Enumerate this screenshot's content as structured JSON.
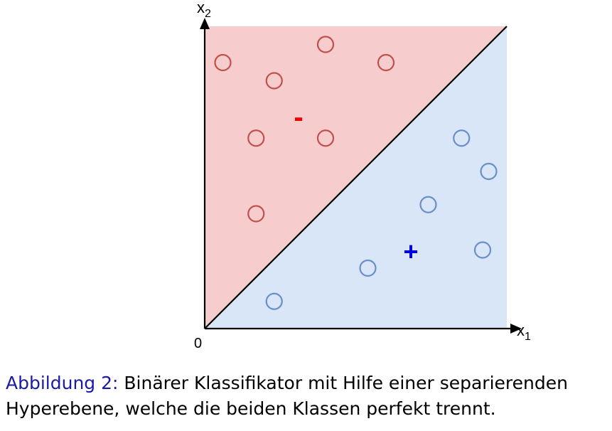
{
  "axes": {
    "x_label": "x",
    "x_subscript": "1",
    "y_label": "x",
    "y_subscript": "2",
    "origin_label": "0"
  },
  "regions": {
    "negative": {
      "sign": "-",
      "fill_color": "#f6cccc",
      "sign_color": "#ee0000"
    },
    "positive": {
      "sign": "+",
      "fill_color": "#d8e6f8",
      "sign_color": "#0000dd"
    }
  },
  "points": {
    "negative_color": "#c0504d",
    "positive_color": "#6a8fc7",
    "negative": [
      {
        "x": 0.06,
        "y": 0.88
      },
      {
        "x": 0.4,
        "y": 0.94
      },
      {
        "x": 0.6,
        "y": 0.88
      },
      {
        "x": 0.23,
        "y": 0.82
      },
      {
        "x": 0.17,
        "y": 0.63
      },
      {
        "x": 0.4,
        "y": 0.63
      },
      {
        "x": 0.17,
        "y": 0.38
      }
    ],
    "positive": [
      {
        "x": 0.85,
        "y": 0.63
      },
      {
        "x": 0.94,
        "y": 0.52
      },
      {
        "x": 0.74,
        "y": 0.41
      },
      {
        "x": 0.92,
        "y": 0.26
      },
      {
        "x": 0.54,
        "y": 0.2
      },
      {
        "x": 0.23,
        "y": 0.09
      }
    ]
  },
  "caption": {
    "label": "Abbildung 2:",
    "line1": "Binärer Klassifikator mit Hilfe einer separierenden",
    "line2": "Hyperebene, welche die beiden Klassen perfekt trennt."
  }
}
